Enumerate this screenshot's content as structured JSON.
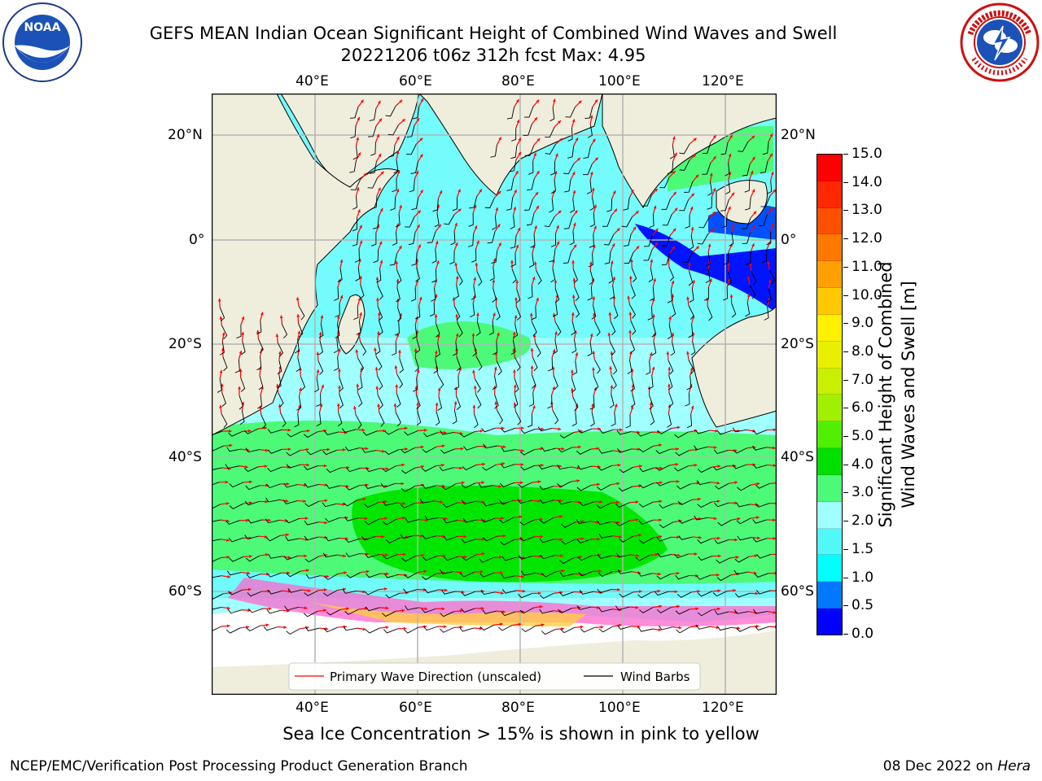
{
  "header": {
    "title_line1": "GEFS MEAN Indian Ocean Significant Height of Combined Wind Waves and Swell",
    "title_line2": "20221206 t06z 312h fcst   Max: 4.95"
  },
  "logos": {
    "left": {
      "text": "NOAA",
      "ring_text": "NATIONAL OCEANIC AND ATMOSPHERIC ADMINISTRATION · U.S. DEPARTMENT OF COMMERCE",
      "icon": "noaa-logo"
    },
    "right": {
      "ring_text": "NATIONAL WEATHER SERVICE",
      "icon": "nws-logo"
    }
  },
  "map": {
    "lon_ticks": [
      "40°E",
      "60°E",
      "80°E",
      "100°E",
      "120°E"
    ],
    "lat_ticks": [
      "20°N",
      "0°",
      "20°S",
      "40°S",
      "60°S"
    ],
    "legend": {
      "items": [
        {
          "label": "Primary Wave Direction (unscaled)",
          "color": "#ff0000"
        },
        {
          "label": "Wind Barbs",
          "color": "#000000"
        }
      ]
    },
    "colors": {
      "land": "#efeddc",
      "ocean_low": "#a0ffff",
      "ocean_mid": "#50f8f8",
      "band_3": "#4cfa78",
      "band_4": "#00e600",
      "shallow": "#0014ff"
    }
  },
  "colorbar": {
    "label_line1": "Significant Height of Combined",
    "label_line2": "Wind Waves and Swell [m]",
    "ticks": [
      "15.0",
      "14.0",
      "13.0",
      "12.0",
      "11.0",
      "10.0",
      "9.0",
      "8.0",
      "7.0",
      "6.0",
      "5.0",
      "4.0",
      "3.0",
      "2.0",
      "1.5",
      "1.0",
      "0.5",
      "0.0"
    ],
    "colors": [
      "#ff0000",
      "#ff2800",
      "#ff5000",
      "#ff7800",
      "#ffa000",
      "#ffc800",
      "#fff000",
      "#e8f000",
      "#c8f000",
      "#a0f000",
      "#50f000",
      "#00e000",
      "#4cfa78",
      "#a0ffff",
      "#50f8f8",
      "#00ffff",
      "#0078ff",
      "#0000ff"
    ]
  },
  "note": "Sea Ice Concentration > 15% is shown in pink to yellow",
  "footer": {
    "left": "NCEP/EMC/Verification Post Processing Product Generation Branch",
    "right_date": "08 Dec 2022 on ",
    "right_host": "Hera"
  }
}
